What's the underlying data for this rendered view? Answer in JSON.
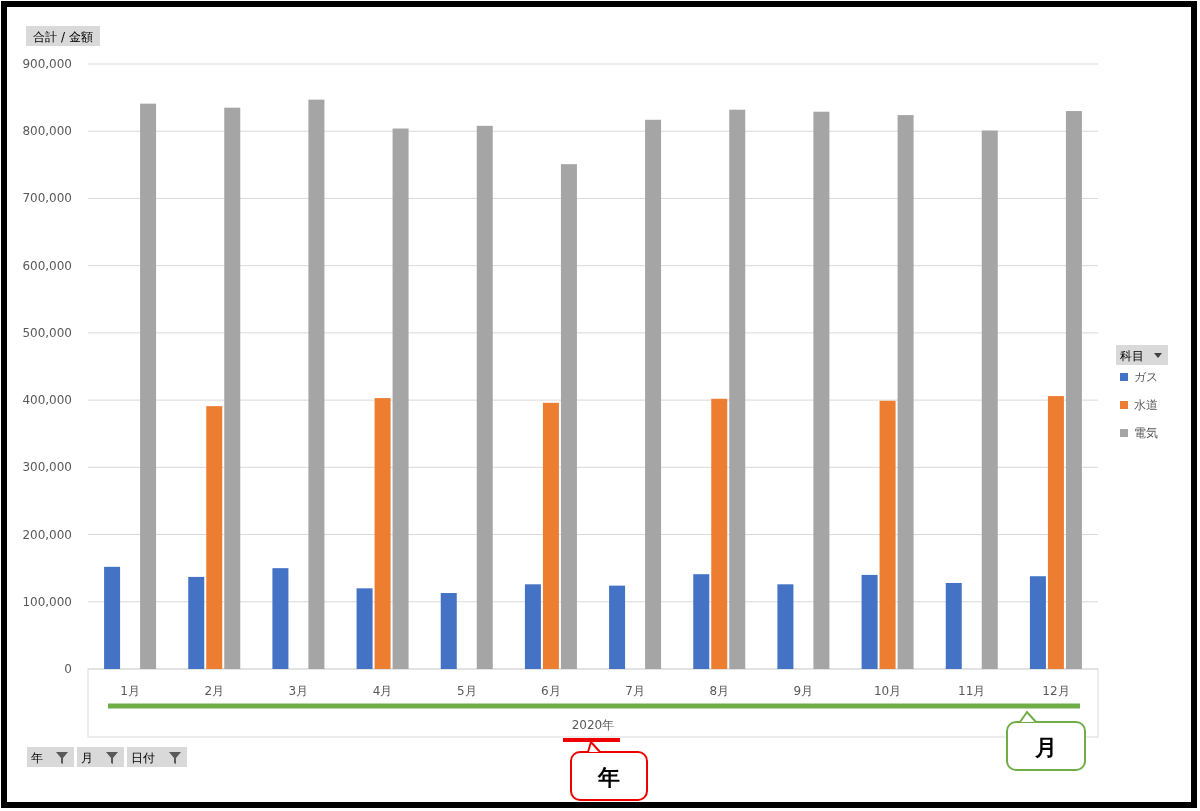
{
  "chart_data": {
    "type": "bar",
    "ylabel": "合計 / 金額",
    "xlabel": "2020年",
    "legend_title": "科目",
    "legend": "right",
    "grid": "y",
    "categories": [
      "1月",
      "2月",
      "3月",
      "4月",
      "5月",
      "6月",
      "7月",
      "8月",
      "9月",
      "10月",
      "11月",
      "12月"
    ],
    "ylim": [
      0,
      900000
    ],
    "yticks": [
      {
        "value": 0,
        "label": "0"
      },
      {
        "value": 100000,
        "label": "100,000"
      },
      {
        "value": 200000,
        "label": "200,000"
      },
      {
        "value": 300000,
        "label": "300,000"
      },
      {
        "value": 400000,
        "label": "400,000"
      },
      {
        "value": 500000,
        "label": "500,000"
      },
      {
        "value": 600000,
        "label": "600,000"
      },
      {
        "value": 700000,
        "label": "700,000"
      },
      {
        "value": 800000,
        "label": "800,000"
      },
      {
        "value": 900000,
        "label": "900,000"
      }
    ],
    "series": [
      {
        "name": "ガス",
        "color": "#4472c4",
        "values": [
          152000,
          137000,
          150000,
          120000,
          113000,
          126000,
          124000,
          141000,
          126000,
          140000,
          128000,
          138000
        ]
      },
      {
        "name": "水道",
        "color": "#ed7d31",
        "values": [
          null,
          391000,
          null,
          403000,
          null,
          396000,
          null,
          402000,
          null,
          399000,
          null,
          406000
        ]
      },
      {
        "name": "電気",
        "color": "#a5a5a5",
        "values": [
          841000,
          835000,
          847000,
          804000,
          808000,
          751000,
          817000,
          832000,
          829000,
          824000,
          801000,
          830000
        ]
      }
    ],
    "annotations": [
      "年",
      "月",
      "年",
      "月",
      "日付"
    ]
  }
}
